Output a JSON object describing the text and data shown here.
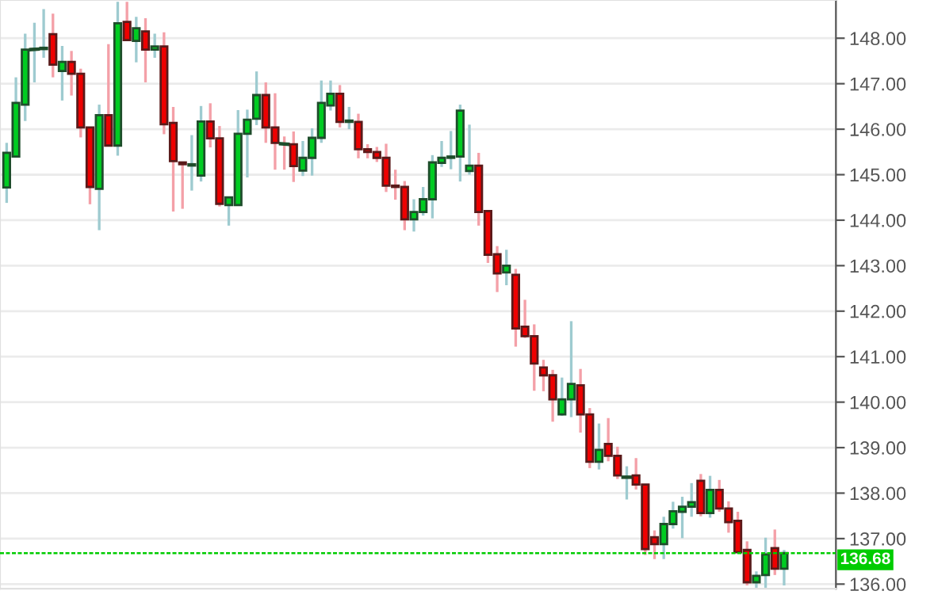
{
  "chart_data": {
    "type": "candlestick",
    "categories": [
      null,
      null,
      null,
      null,
      null,
      null,
      null,
      null,
      null,
      null,
      null,
      null,
      null,
      null,
      null,
      null,
      null,
      null,
      null,
      null,
      null,
      null,
      null,
      null,
      null,
      null,
      null,
      null,
      null,
      null,
      null,
      null,
      null,
      null,
      null,
      null,
      null,
      null,
      null,
      null,
      null,
      null,
      null,
      null,
      null,
      null,
      null,
      null,
      null,
      null,
      null,
      null,
      null,
      null,
      null,
      null,
      null,
      null,
      null,
      null,
      null,
      null,
      null,
      null,
      null,
      null,
      null,
      null,
      null,
      null,
      null,
      null,
      null,
      null,
      null,
      null,
      null,
      null,
      null,
      null,
      null,
      null,
      null,
      null,
      null
    ],
    "ohlc": [
      [
        144.72,
        145.7,
        144.38,
        145.48
      ],
      [
        145.4,
        147.14,
        145.4,
        146.58
      ],
      [
        146.54,
        148.1,
        146.18,
        147.75
      ],
      [
        147.75,
        148.34,
        147.03,
        147.76
      ],
      [
        147.76,
        148.64,
        147.57,
        147.79
      ],
      [
        148.09,
        148.54,
        147.14,
        147.42
      ],
      [
        147.28,
        147.83,
        146.63,
        147.48
      ],
      [
        147.48,
        147.72,
        146.74,
        147.22
      ],
      [
        147.22,
        147.33,
        145.82,
        146.04
      ],
      [
        146.04,
        146.04,
        144.35,
        144.73
      ],
      [
        144.69,
        146.54,
        143.78,
        146.31
      ],
      [
        146.31,
        147.87,
        145.64,
        145.64
      ],
      [
        145.64,
        148.8,
        145.42,
        148.33
      ],
      [
        148.36,
        148.8,
        147.96,
        147.96
      ],
      [
        147.94,
        148.47,
        147.47,
        148.22
      ],
      [
        148.15,
        148.44,
        147.03,
        147.75
      ],
      [
        147.75,
        148.1,
        147.57,
        147.82
      ],
      [
        147.82,
        148.13,
        145.89,
        146.11
      ],
      [
        146.14,
        146.49,
        144.19,
        145.3
      ],
      [
        145.27,
        145.27,
        144.25,
        145.23
      ],
      [
        145.2,
        145.87,
        144.65,
        145.23
      ],
      [
        144.98,
        146.51,
        144.85,
        146.17
      ],
      [
        146.17,
        146.57,
        145.6,
        145.8
      ],
      [
        145.8,
        146.07,
        144.3,
        144.36
      ],
      [
        144.33,
        144.5,
        143.88,
        144.5
      ],
      [
        144.33,
        146.42,
        144.33,
        145.9
      ],
      [
        145.9,
        146.43,
        144.94,
        146.21
      ],
      [
        146.23,
        147.27,
        146.09,
        146.75
      ],
      [
        146.75,
        147.03,
        145.7,
        146.04
      ],
      [
        146.04,
        146.79,
        145.11,
        145.7
      ],
      [
        145.68,
        145.84,
        145.11,
        145.67
      ],
      [
        145.67,
        145.95,
        144.84,
        145.19
      ],
      [
        145.09,
        145.74,
        144.97,
        145.37
      ],
      [
        145.37,
        146.02,
        144.98,
        145.81
      ],
      [
        145.81,
        147.07,
        145.7,
        146.58
      ],
      [
        146.52,
        147.07,
        146.41,
        146.78
      ],
      [
        146.78,
        146.97,
        146.04,
        146.16
      ],
      [
        146.16,
        146.49,
        146.0,
        146.19
      ],
      [
        146.16,
        146.34,
        145.36,
        145.56
      ],
      [
        145.56,
        145.67,
        145.36,
        145.5
      ],
      [
        145.5,
        145.61,
        145.28,
        145.37
      ],
      [
        145.37,
        145.68,
        144.62,
        144.76
      ],
      [
        144.76,
        145.11,
        144.45,
        144.73
      ],
      [
        144.73,
        144.86,
        143.78,
        144.02
      ],
      [
        144.02,
        144.46,
        143.75,
        144.18
      ],
      [
        144.18,
        144.73,
        144.1,
        144.46
      ],
      [
        144.46,
        145.43,
        144.04,
        145.27
      ],
      [
        145.26,
        145.74,
        145.17,
        145.37
      ],
      [
        145.37,
        145.96,
        145.12,
        145.4
      ],
      [
        145.4,
        146.54,
        144.85,
        146.41
      ],
      [
        145.08,
        146.1,
        145.0,
        145.2
      ],
      [
        145.2,
        145.48,
        143.88,
        144.18
      ],
      [
        144.2,
        144.2,
        143.06,
        143.24
      ],
      [
        143.25,
        143.43,
        142.42,
        142.83
      ],
      [
        142.85,
        143.35,
        142.57,
        143.0
      ],
      [
        142.8,
        142.93,
        141.22,
        141.62
      ],
      [
        141.66,
        142.25,
        141.41,
        141.45
      ],
      [
        141.45,
        141.71,
        140.25,
        140.85
      ],
      [
        140.76,
        140.93,
        140.24,
        140.59
      ],
      [
        140.59,
        140.71,
        139.57,
        140.06
      ],
      [
        139.73,
        140.54,
        139.7,
        140.06
      ],
      [
        140.06,
        141.78,
        139.67,
        140.4
      ],
      [
        140.37,
        140.73,
        139.33,
        139.73
      ],
      [
        139.73,
        139.87,
        138.55,
        138.69
      ],
      [
        138.69,
        139.53,
        138.52,
        138.95
      ],
      [
        139.08,
        139.65,
        138.7,
        138.82
      ],
      [
        138.82,
        139.02,
        138.31,
        138.39
      ],
      [
        138.35,
        138.59,
        137.86,
        138.35
      ],
      [
        138.39,
        138.77,
        138.08,
        138.19
      ],
      [
        138.19,
        138.19,
        136.64,
        136.77
      ],
      [
        137.03,
        137.18,
        136.55,
        136.88
      ],
      [
        136.88,
        137.48,
        136.55,
        137.32
      ],
      [
        137.32,
        137.81,
        137.22,
        137.6
      ],
      [
        137.59,
        137.92,
        137.01,
        137.7
      ],
      [
        137.7,
        138.22,
        137.48,
        137.8
      ],
      [
        138.27,
        138.42,
        137.49,
        137.56
      ],
      [
        137.56,
        138.38,
        137.46,
        138.07
      ],
      [
        138.07,
        138.29,
        137.59,
        137.66
      ],
      [
        137.66,
        137.82,
        137.13,
        137.36
      ],
      [
        137.39,
        137.59,
        136.7,
        136.7
      ],
      [
        136.75,
        136.94,
        135.97,
        136.04
      ],
      [
        136.04,
        136.28,
        135.92,
        136.18
      ],
      [
        136.2,
        137.02,
        135.92,
        136.65
      ],
      [
        136.79,
        137.2,
        136.2,
        136.34
      ],
      [
        136.34,
        136.75,
        135.97,
        136.68
      ]
    ],
    "ylim": [
      135.9,
      148.84
    ],
    "yticks": [
      {
        "value": 136,
        "label": "136.00"
      },
      {
        "value": 137,
        "label": "137.00"
      },
      {
        "value": 138,
        "label": "138.00"
      },
      {
        "value": 139,
        "label": "139.00"
      },
      {
        "value": 140,
        "label": "140.00"
      },
      {
        "value": 141,
        "label": "141.00"
      },
      {
        "value": 142,
        "label": "142.00"
      },
      {
        "value": 143,
        "label": "143.00"
      },
      {
        "value": 144,
        "label": "144.00"
      },
      {
        "value": 145,
        "label": "145.00"
      },
      {
        "value": 146,
        "label": "146.00"
      },
      {
        "value": 147,
        "label": "147.00"
      },
      {
        "value": 148,
        "label": "148.00"
      }
    ],
    "grid": "y",
    "ref_lines": [
      {
        "axis": "y",
        "value": 136.68,
        "label": "136.68",
        "color": "#00cc00",
        "line_style": "dashed"
      }
    ]
  }
}
